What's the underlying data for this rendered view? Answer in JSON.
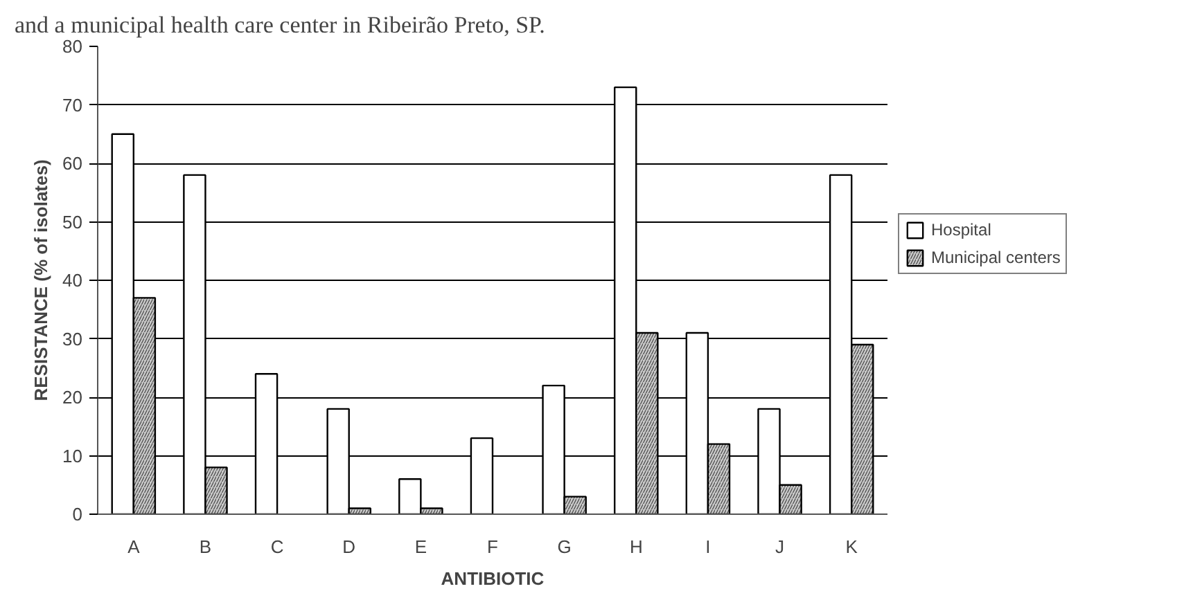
{
  "chart_data": {
    "type": "bar",
    "title": "and a municipal health care center in Ribeirão Preto, SP.",
    "xlabel": "ANTIBIOTIC",
    "ylabel": "RESISTANCE (% of isolates)",
    "categories": [
      "A",
      "B",
      "C",
      "D",
      "E",
      "F",
      "G",
      "H",
      "I",
      "J",
      "K"
    ],
    "series": [
      {
        "name": "Hospital",
        "color": "#ffffff",
        "values": [
          65,
          58,
          24,
          18,
          6,
          13,
          22,
          73,
          31,
          18,
          58
        ]
      },
      {
        "name": "Municipal centers",
        "color": "#c8c8c8",
        "values": [
          37,
          8,
          null,
          1,
          1,
          null,
          3,
          31,
          12,
          5,
          29
        ]
      }
    ],
    "ylim": [
      0,
      80
    ],
    "yticks": [
      0,
      10,
      20,
      30,
      40,
      50,
      60,
      70,
      80
    ],
    "grid": "y",
    "legend": "right"
  }
}
